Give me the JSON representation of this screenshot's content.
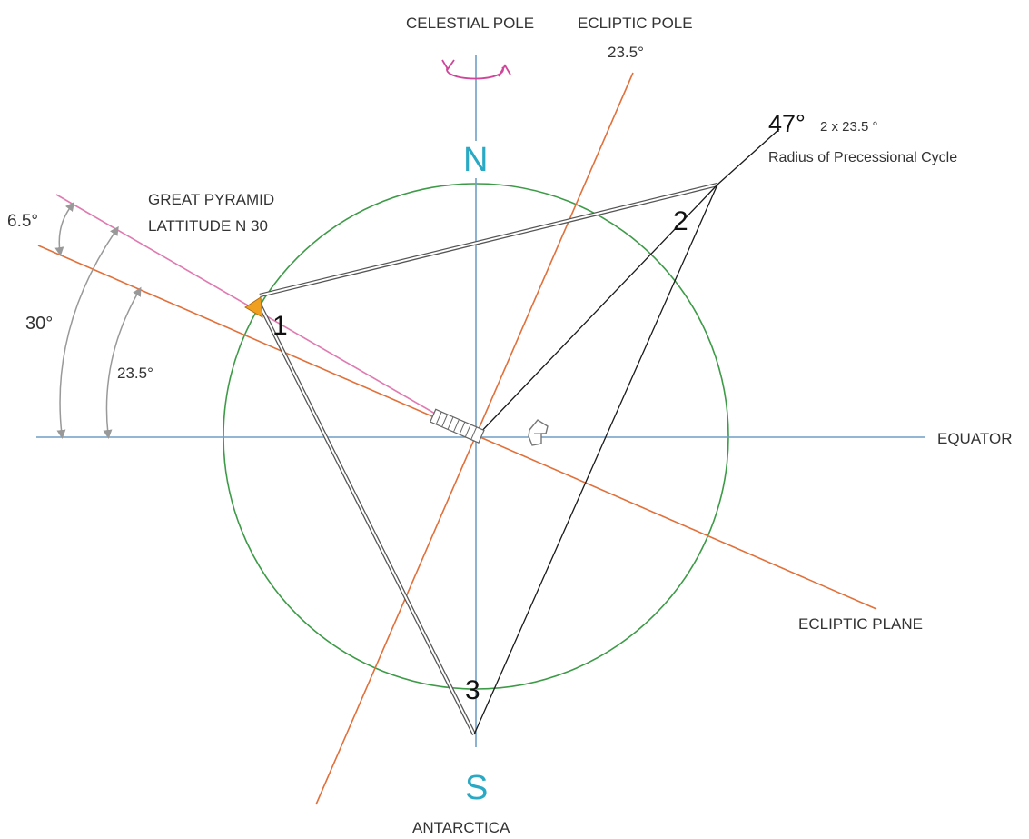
{
  "labels": {
    "celestial_pole": "CELESTIAL POLE",
    "ecliptic_pole": "ECLIPTIC POLE",
    "ecliptic_pole_angle": "23.5°",
    "north": "N",
    "south": "S",
    "antarctica": "ANTARCTICA",
    "equator": "EQUATOR",
    "ecliptic_plane": "ECLIPTIC PLANE",
    "great_pyramid_line1": "GREAT PYRAMID",
    "great_pyramid_line2": "LATTITUDE N 30",
    "angle_6_5": "6.5°",
    "angle_30": "30°",
    "angle_23_5": "23.5°",
    "angle_47": "47°",
    "angle_47_note": "2 x 23.5 °",
    "precession_radius": "Radius of Precessional Cycle",
    "vertex_1": "1",
    "vertex_2": "2",
    "vertex_3": "3"
  },
  "colors": {
    "axis": "#6f9ec6",
    "pole_text": "#29a9c4",
    "ecliptic": "#e2703a",
    "latitude_line": "#e07ab0",
    "circle": "#3d9b47",
    "rotation_arrow": "#d0459a",
    "triangle": "#1a1a1a",
    "dimension": "#999999"
  },
  "icons": [
    "rotation-arrow-icon",
    "pyramid-marker-icon",
    "earth-axis-icon",
    "hand-pointer-icon"
  ]
}
